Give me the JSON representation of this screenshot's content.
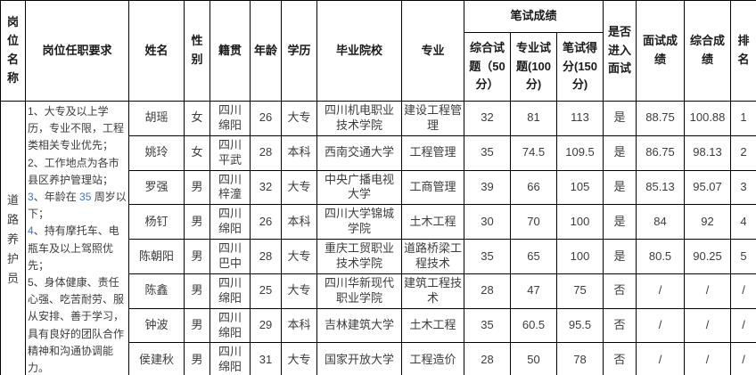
{
  "table": {
    "header": {
      "position_name": "岗位名称",
      "requirements": "岗位任职要求",
      "name": "姓名",
      "gender": "性别",
      "hometown": "籍贯",
      "age": "年龄",
      "education": "学历",
      "school": "毕业院校",
      "major": "专业",
      "written_group": "笔试成绩",
      "comprehensive_q": "综合试题（50分）",
      "professional_q": "专业试题(100分)",
      "written_total": "笔试得分(150分)",
      "enter_interview": "是否进入面试",
      "interview_score": "面试成绩",
      "overall_score": "综合成绩",
      "rank": "排名"
    },
    "position": {
      "name": "道路养护员",
      "requirements": [
        "1、大专及以上学历，专业不限，工程类相关专业优先；",
        "2、工作地点为各市县区养护管理站；",
        "3、年龄在 35 周岁以下；",
        "4、持有摩托车、电瓶车及以上驾照优先；",
        "5、身体健康、责任心强、吃苦耐劳、服从安排、善于学习，具有良好的团队合作精神和沟通协调能力。"
      ],
      "blue_digit_items": [
        2,
        3
      ]
    },
    "rows": [
      {
        "name": "胡瑶",
        "gender": "女",
        "hometown": [
          "四川",
          "绵阳"
        ],
        "age": "26",
        "education": "大专",
        "school": "四川机电职业技术学院",
        "major": "建设工程管理",
        "comprehensive": "32",
        "professional": "81",
        "written": "113",
        "enter": "是",
        "interview": "88.75",
        "overall": "100.88",
        "rank": "1"
      },
      {
        "name": "姚玲",
        "gender": "女",
        "hometown": [
          "四川",
          "平武"
        ],
        "age": "28",
        "education": "本科",
        "school": "西南交通大学",
        "major": "工程管理",
        "comprehensive": "35",
        "professional": "74.5",
        "written": "109.5",
        "enter": "是",
        "interview": "86.75",
        "overall": "98.13",
        "rank": "2"
      },
      {
        "name": "罗强",
        "gender": "男",
        "hometown": [
          "四川",
          "梓潼"
        ],
        "age": "32",
        "education": "大专",
        "school": "中央广播电视大学",
        "major": "工商管理",
        "comprehensive": "39",
        "professional": "66",
        "written": "105",
        "enter": "是",
        "interview": "85.13",
        "overall": "95.07",
        "rank": "3"
      },
      {
        "name": "杨钉",
        "gender": "男",
        "hometown": [
          "四川",
          "绵阳"
        ],
        "age": "26",
        "education": "本科",
        "school": "四川大学锦城学院",
        "major": "土木工程",
        "comprehensive": "30",
        "professional": "70",
        "written": "100",
        "enter": "是",
        "interview": "84",
        "overall": "92",
        "rank": "4"
      },
      {
        "name": "陈朝阳",
        "gender": "男",
        "hometown": [
          "四川",
          "巴中"
        ],
        "age": "28",
        "education": "大专",
        "school": "重庆工贸职业技术学院",
        "major": "道路桥梁工程技术",
        "comprehensive": "35",
        "professional": "65",
        "written": "100",
        "enter": "是",
        "interview": "80.5",
        "overall": "90.25",
        "rank": "5"
      },
      {
        "name": "陈鑫",
        "gender": "男",
        "hometown": [
          "四川",
          "绵阳"
        ],
        "age": "25",
        "education": "大专",
        "school": "四川华新现代职业学院",
        "major": "建筑工程技术",
        "comprehensive": "28",
        "professional": "47",
        "written": "75",
        "enter": "否",
        "interview": "/",
        "overall": "/",
        "rank": "/"
      },
      {
        "name": "钟波",
        "gender": "男",
        "hometown": [
          "四川",
          "绵阳"
        ],
        "age": "29",
        "education": "本科",
        "school": "吉林建筑大学",
        "major": "土木工程",
        "comprehensive": "35",
        "professional": "60.5",
        "written": "95.5",
        "enter": "否",
        "interview": "/",
        "overall": "/",
        "rank": "/"
      },
      {
        "name": "侯建秋",
        "gender": "男",
        "hometown": [
          "四川",
          "绵阳"
        ],
        "age": "31",
        "education": "大专",
        "school": "国家开放大学",
        "major": "工程造价",
        "comprehensive": "28",
        "professional": "50",
        "written": "78",
        "enter": "否",
        "interview": "/",
        "overall": "/",
        "rank": "/"
      }
    ]
  },
  "colors": {
    "border": "#000000",
    "text": "#3c3c3c",
    "header_text": "#1a1a1a",
    "digit_blue": "#4472c4",
    "background": "#ffffff"
  }
}
